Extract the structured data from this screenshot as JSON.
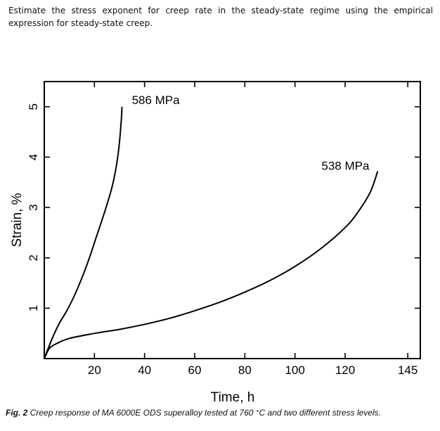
{
  "question": "Estimate the stress exponent for creep rate in the steady-state regime using the empirical expression for steady-state creep.",
  "caption": {
    "label": "Fig. 2",
    "text": "Creep response of MA 6000E ODS superalloy tested at 760 °C and two different stress levels."
  },
  "chart_data": {
    "type": "line",
    "xlabel": "Time, h",
    "ylabel": "Strain, %",
    "xlim": [
      0,
      150
    ],
    "ylim": [
      0,
      5.5
    ],
    "xticks": [
      20,
      40,
      60,
      80,
      100,
      120,
      145
    ],
    "yticks": [
      1,
      2,
      3,
      4,
      5
    ],
    "grid": false,
    "series": [
      {
        "name": "586 MPa",
        "x": [
          0,
          3,
          6,
          9,
          12,
          15,
          18,
          21,
          24,
          27,
          29,
          30,
          30.8,
          31
        ],
        "y": [
          0,
          0.38,
          0.7,
          0.95,
          1.25,
          1.6,
          2.0,
          2.45,
          2.9,
          3.4,
          3.9,
          4.3,
          4.8,
          5.0
        ]
      },
      {
        "name": "538 MPa",
        "x": [
          0,
          2,
          5,
          10,
          20,
          30,
          40,
          50,
          60,
          70,
          80,
          90,
          100,
          110,
          120,
          125,
          130,
          133
        ],
        "y": [
          0,
          0.2,
          0.3,
          0.4,
          0.5,
          0.58,
          0.68,
          0.8,
          0.95,
          1.12,
          1.32,
          1.55,
          1.83,
          2.17,
          2.6,
          2.9,
          3.3,
          3.72
        ]
      }
    ]
  }
}
